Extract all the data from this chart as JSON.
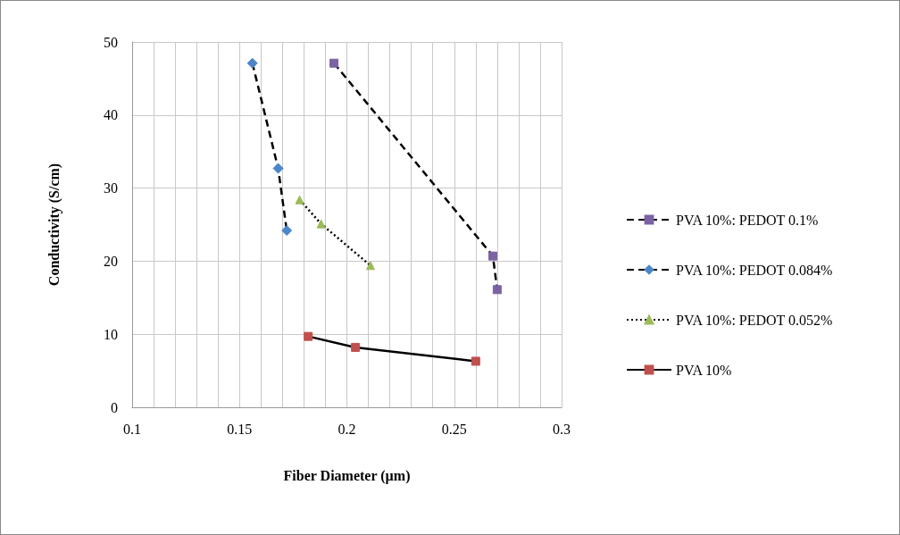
{
  "chart_data": {
    "type": "line",
    "xlabel": "Fiber Diameter (µm)",
    "ylabel": "Conductivity (S/cm)",
    "xlim": [
      0.1,
      0.3
    ],
    "ylim": [
      0,
      50
    ],
    "xticks": [
      0.1,
      {
        "value": 0.11,
        "label": null
      },
      {
        "value": 0.12,
        "label": null
      },
      {
        "value": 0.13,
        "label": null
      },
      {
        "value": 0.14,
        "label": null
      },
      0.15,
      {
        "value": 0.16,
        "label": null
      },
      {
        "value": 0.17,
        "label": null
      },
      {
        "value": 0.18,
        "label": null
      },
      {
        "value": 0.19,
        "label": null
      },
      0.2,
      {
        "value": 0.21,
        "label": null
      },
      {
        "value": 0.22,
        "label": null
      },
      {
        "value": 0.23,
        "label": null
      },
      {
        "value": 0.24,
        "label": null
      },
      0.25,
      {
        "value": 0.26,
        "label": null
      },
      {
        "value": 0.27,
        "label": null
      },
      {
        "value": 0.28,
        "label": null
      },
      {
        "value": 0.29,
        "label": null
      },
      0.3
    ],
    "yticks": [
      0,
      10,
      20,
      30,
      40,
      50
    ],
    "grid": true,
    "legend": "right",
    "series": [
      {
        "name": "PVA 10%: PEDOT 0.1%",
        "color": "#7b62a3",
        "marker": "square",
        "line_style": "dashed",
        "x": [
          0.194,
          0.268,
          0.27
        ],
        "values": [
          47.1,
          20.7,
          16.1
        ]
      },
      {
        "name": "PVA 10%: PEDOT 0.084%",
        "color": "#4a86c8",
        "marker": "diamond",
        "line_style": "dashed",
        "x": [
          0.156,
          0.168,
          0.172
        ],
        "values": [
          47.1,
          32.7,
          24.2
        ]
      },
      {
        "name": "PVA 10%: PEDOT 0.052%",
        "color": "#9bbb59",
        "marker": "triangle",
        "line_style": "dotted",
        "x": [
          0.178,
          0.188,
          0.211
        ],
        "values": [
          28.4,
          25.1,
          19.4
        ]
      },
      {
        "name": "PVA 10%",
        "color": "#c0504d",
        "marker": "square",
        "line_style": "solid",
        "x": [
          0.182,
          0.204,
          0.26
        ],
        "values": [
          9.7,
          8.2,
          6.3
        ]
      }
    ]
  }
}
